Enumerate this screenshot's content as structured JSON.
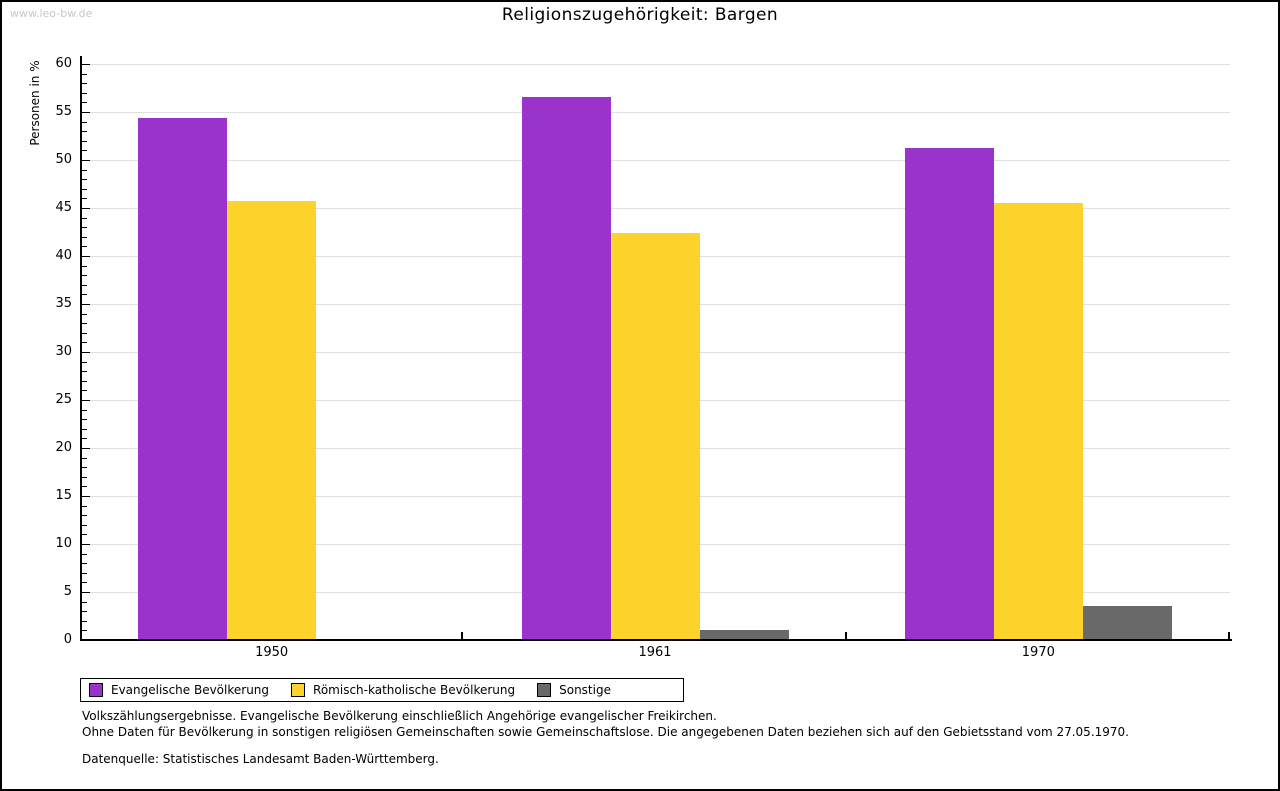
{
  "watermark": "www.leo-bw.de",
  "header": {
    "title": "Religionszugehörigkeit: Bargen"
  },
  "chart_data": {
    "type": "bar",
    "title": "Religionszugehörigkeit: Bargen",
    "xlabel": "",
    "ylabel": "Personen in %",
    "ylim": [
      0,
      60
    ],
    "ytick_step": 5,
    "minor_tick_step": 1,
    "grid": true,
    "legend_position": "bottom-left",
    "categories": [
      "1950",
      "1961",
      "1970"
    ],
    "series": [
      {
        "name": "Evangelische Bevölkerung",
        "color": "#9933cc",
        "values": [
          54.4,
          56.6,
          51.2
        ]
      },
      {
        "name": "Römisch-katholische Bevölkerung",
        "color": "#fbd32b",
        "values": [
          45.7,
          42.4,
          45.5
        ]
      },
      {
        "name": "Sonstige",
        "color": "#696969",
        "values": [
          0.1,
          1.0,
          3.5
        ]
      }
    ]
  },
  "footer": {
    "line1": "Volkszählungsergebnisse. Evangelische Bevölkerung einschließlich Angehörige evangelischer Freikirchen.",
    "line2": "Ohne Daten für Bevölkerung in sonstigen religiösen Gemeinschaften sowie Gemeinschaftslose. Die angegebenen Daten beziehen sich auf den Gebietsstand vom 27.05.1970.",
    "source": "Datenquelle: Statistisches Landesamt Baden-Württemberg."
  }
}
